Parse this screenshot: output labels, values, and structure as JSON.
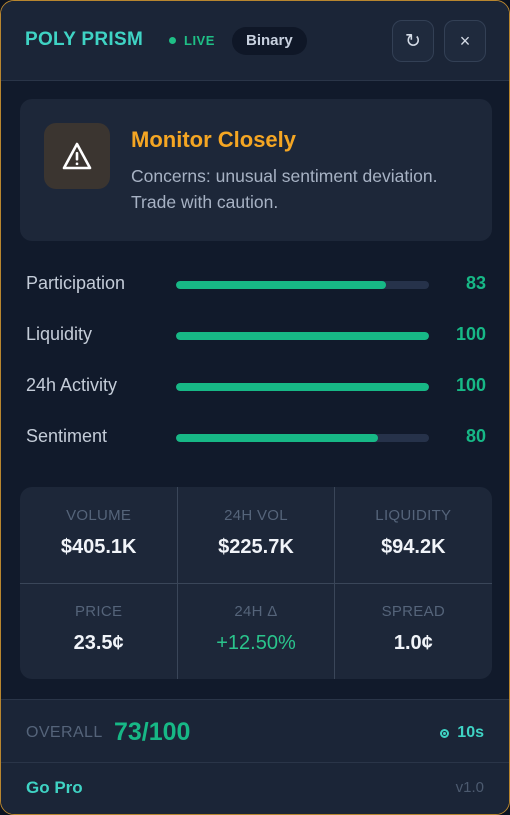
{
  "header": {
    "brand": "POLY PRISM",
    "live_label": "LIVE",
    "badge": "Binary",
    "refresh_icon": "refresh-icon",
    "close_icon": "close-icon",
    "refresh_glyph": "↻",
    "close_glyph": "×"
  },
  "alert": {
    "icon": "warning-icon",
    "title": "Monitor Closely",
    "text": "Concerns: unusual sentiment deviation. Trade with caution."
  },
  "metrics": [
    {
      "label": "Participation",
      "value": "83",
      "percent": 83
    },
    {
      "label": "Liquidity",
      "value": "100",
      "percent": 100
    },
    {
      "label": "24h Activity",
      "value": "100",
      "percent": 100
    },
    {
      "label": "Sentiment",
      "value": "80",
      "percent": 80
    }
  ],
  "stats": [
    {
      "label": "VOLUME",
      "value": "$405.1K"
    },
    {
      "label": "24H VOL",
      "value": "$225.7K"
    },
    {
      "label": "LIQUIDITY",
      "value": "$94.2K"
    },
    {
      "label": "PRICE",
      "value": "23.5¢"
    },
    {
      "label": "24H Δ",
      "value": "+12.50%"
    },
    {
      "label": "SPREAD",
      "value": "1.0¢"
    }
  ],
  "overall": {
    "label": "OVERALL",
    "score": "73/100",
    "timer": "10s"
  },
  "footer": {
    "gopro": "Go Pro",
    "version": "v1.0"
  },
  "colors": {
    "accent": "#3fd3c4",
    "positive": "#17b886",
    "warning": "#f5a623",
    "border": "#b8862f"
  }
}
